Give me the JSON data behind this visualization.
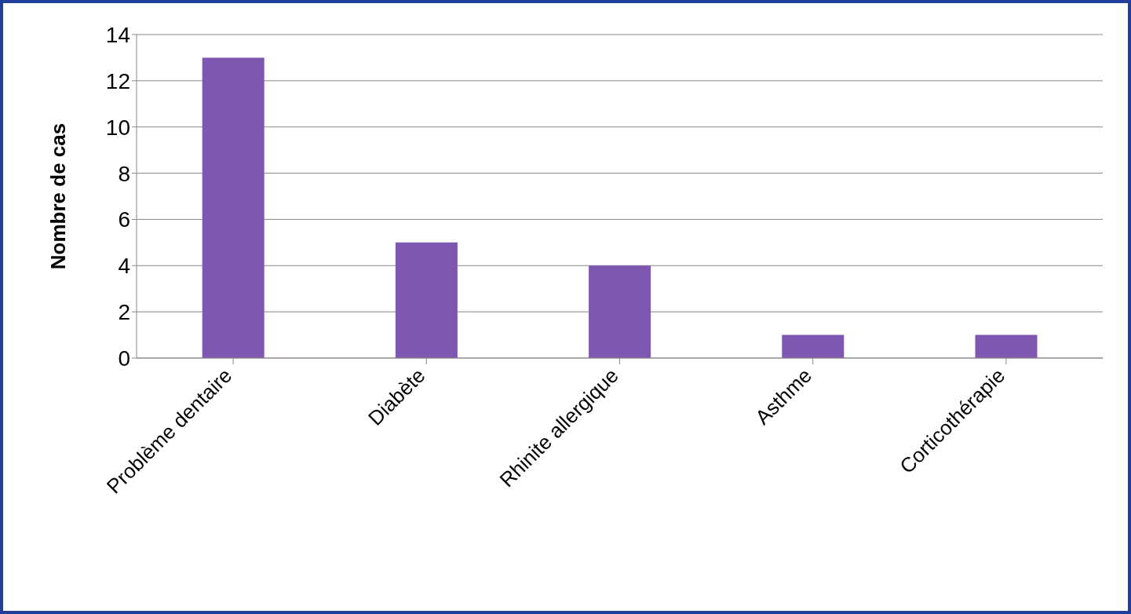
{
  "chart_data": {
    "type": "bar",
    "ylabel": "Nombre de cas",
    "categories": [
      "Problème dentaire",
      "Diabète",
      "Rhinite allergique",
      "Asthme",
      "Corticothérapie"
    ],
    "values": [
      13,
      5,
      4,
      1,
      1
    ],
    "color": "#7e57b0",
    "ylim": [
      0,
      14
    ],
    "yticks": [
      0,
      2,
      4,
      6,
      8,
      10,
      12,
      14
    ],
    "grid": "y"
  }
}
